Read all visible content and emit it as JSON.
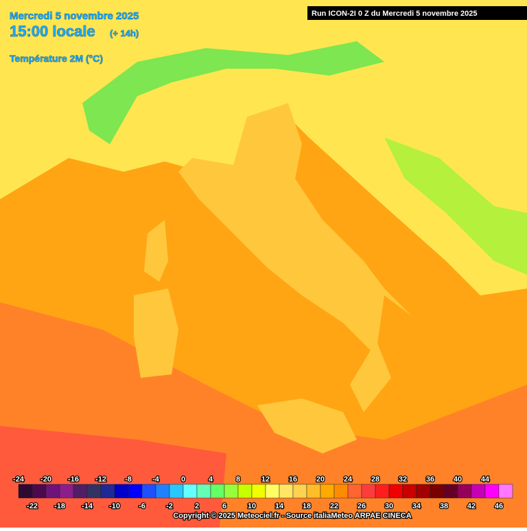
{
  "header": {
    "date": "Mercredi 5 novembre 2025",
    "time": "15:00 locale",
    "offset": "(+ 14h)",
    "variable": "Température 2M (°C)",
    "run": "Run ICON-2I 0 Z du Mercredi 5 novembre 2025"
  },
  "legend": {
    "values": [
      -24,
      -22,
      -20,
      -18,
      -16,
      -14,
      -12,
      -10,
      -8,
      -6,
      -4,
      -2,
      0,
      2,
      4,
      6,
      8,
      10,
      12,
      14,
      16,
      18,
      20,
      22,
      24,
      26,
      28,
      30,
      32,
      34,
      36,
      38,
      40,
      42,
      44,
      46
    ],
    "colors": [
      "#2d0a32",
      "#4b0a4b",
      "#6e1478",
      "#8c1e8c",
      "#501e64",
      "#323264",
      "#1e2896",
      "#0000c8",
      "#0000ff",
      "#1e50ff",
      "#1e82ff",
      "#28c8ff",
      "#64ffff",
      "#64ffb4",
      "#64ff64",
      "#96ff3c",
      "#c8ff00",
      "#f0ff00",
      "#ffff64",
      "#ffe664",
      "#ffd250",
      "#ffbe28",
      "#ffaa00",
      "#ff8c00",
      "#ff6432",
      "#ff3c3c",
      "#ff1e1e",
      "#f00000",
      "#c80000",
      "#a00000",
      "#780000",
      "#640028",
      "#96005a",
      "#c800b4",
      "#ff00ff",
      "#ff78ff"
    ]
  },
  "footer": {
    "copyright": "Copyright © 2025 Meteociel.fr - Source italiaMeteo ARPAE CINECA"
  }
}
